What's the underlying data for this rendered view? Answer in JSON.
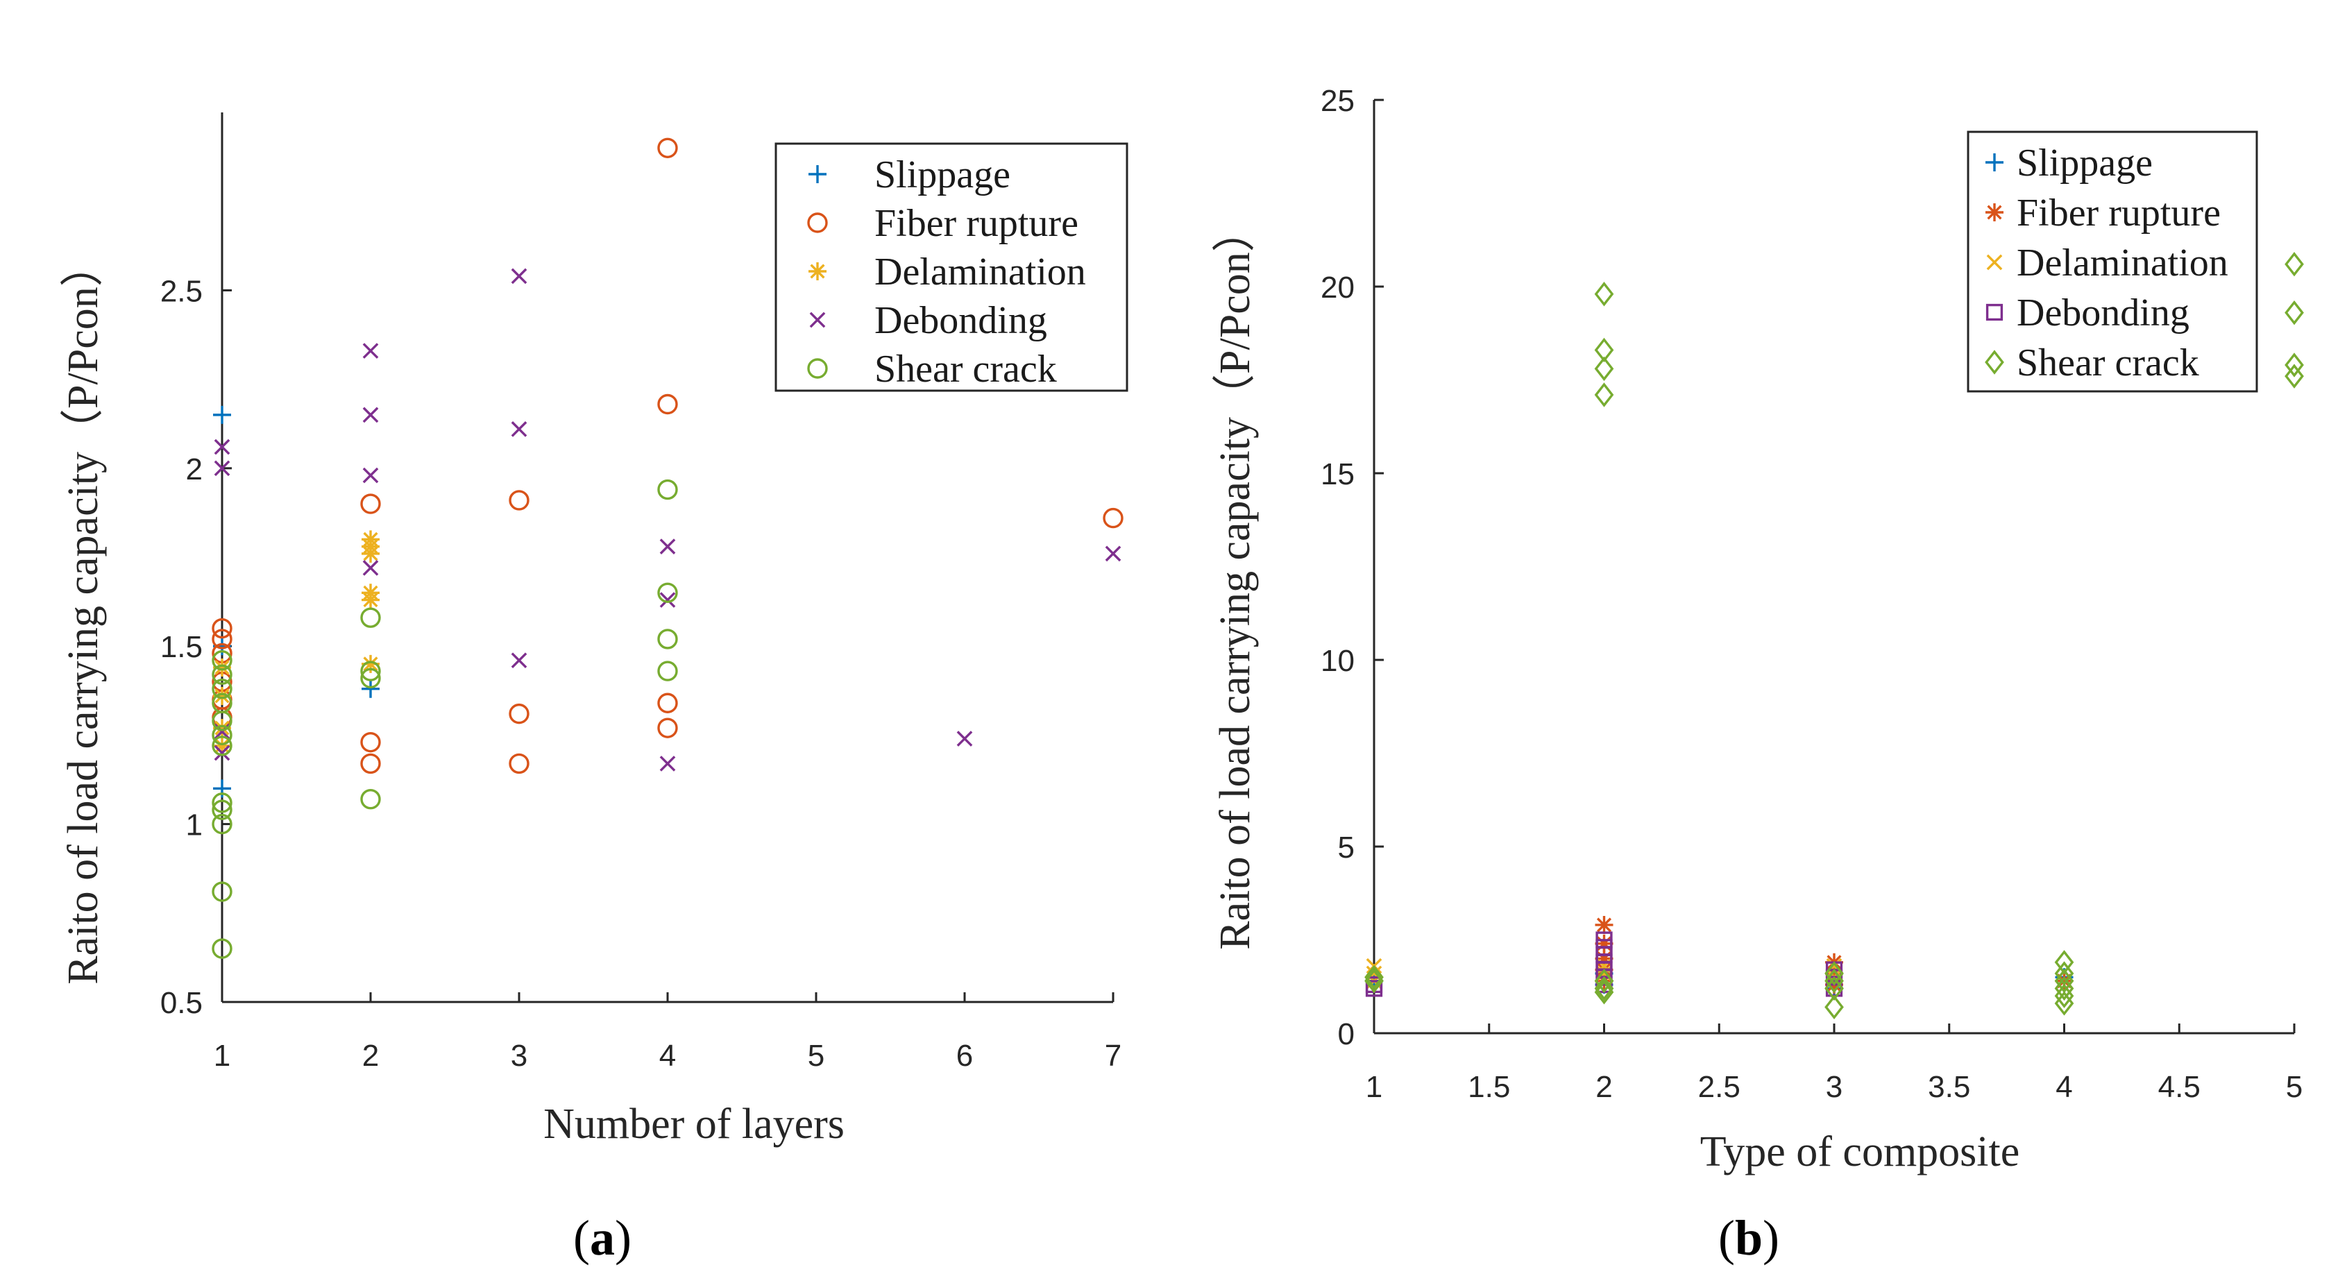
{
  "colors": {
    "Slippage": "#0072BD",
    "Fiber rupture": "#D95319",
    "Delamination": "#EDB120",
    "Debonding": "#7E2F8E",
    "Shear crack": "#77AC30"
  },
  "chart_data": [
    {
      "type": "scatter",
      "panel_label": "a",
      "xlabel": "Number of layers",
      "ylabel": "Raito of load carrying capacity（P/Pcon）",
      "xlim": [
        1,
        7
      ],
      "ylim": [
        0.5,
        3
      ],
      "xticks": [
        1,
        2,
        3,
        4,
        5,
        6,
        7
      ],
      "yticks": [
        0.5,
        1,
        1.5,
        2,
        2.5
      ],
      "ytick_labels": [
        "0.5",
        "1",
        "1.5",
        "2",
        "2.5"
      ],
      "legend_position": "top-right",
      "series": [
        {
          "name": "Slippage",
          "marker": "plus",
          "points": [
            [
              1,
              2.15
            ],
            [
              1,
              1.5
            ],
            [
              1,
              1.1
            ],
            [
              2,
              1.38
            ]
          ]
        },
        {
          "name": "Fiber rupture",
          "marker": "circle",
          "points": [
            [
              1,
              1.55
            ],
            [
              1,
              1.52
            ],
            [
              1,
              1.48
            ],
            [
              1,
              1.4
            ],
            [
              1,
              1.35
            ],
            [
              1,
              1.3
            ],
            [
              2,
              1.9
            ],
            [
              2,
              1.23
            ],
            [
              2,
              1.17
            ],
            [
              3,
              1.91
            ],
            [
              3,
              1.31
            ],
            [
              3,
              1.17
            ],
            [
              4,
              2.9
            ],
            [
              4,
              2.18
            ],
            [
              4,
              1.34
            ],
            [
              4,
              1.27
            ],
            [
              7,
              1.86
            ]
          ]
        },
        {
          "name": "Delamination",
          "marker": "asterisk",
          "points": [
            [
              1,
              1.44
            ],
            [
              1,
              1.36
            ],
            [
              1,
              1.27
            ],
            [
              1,
              1.22
            ],
            [
              2,
              1.8
            ],
            [
              2,
              1.78
            ],
            [
              2,
              1.76
            ],
            [
              2,
              1.65
            ],
            [
              2,
              1.63
            ],
            [
              2,
              1.45
            ]
          ]
        },
        {
          "name": "Debonding",
          "marker": "x",
          "points": [
            [
              1,
              2.06
            ],
            [
              1,
              2.0
            ],
            [
              1,
              1.26
            ],
            [
              1,
              1.2
            ],
            [
              2,
              2.33
            ],
            [
              2,
              2.15
            ],
            [
              2,
              1.98
            ],
            [
              2,
              1.72
            ],
            [
              3,
              2.54
            ],
            [
              3,
              2.11
            ],
            [
              3,
              1.46
            ],
            [
              4,
              1.78
            ],
            [
              4,
              1.63
            ],
            [
              4,
              1.17
            ],
            [
              6,
              1.24
            ],
            [
              7,
              1.76
            ]
          ]
        },
        {
          "name": "Shear crack",
          "marker": "circle",
          "points": [
            [
              1,
              1.46
            ],
            [
              1,
              1.42
            ],
            [
              1,
              1.38
            ],
            [
              1,
              1.34
            ],
            [
              1,
              1.29
            ],
            [
              1,
              1.25
            ],
            [
              1,
              1.22
            ],
            [
              1,
              1.06
            ],
            [
              1,
              1.04
            ],
            [
              1,
              1.0
            ],
            [
              1,
              0.81
            ],
            [
              1,
              0.65
            ],
            [
              2,
              1.58
            ],
            [
              2,
              1.43
            ],
            [
              2,
              1.41
            ],
            [
              2,
              1.07
            ],
            [
              4,
              1.94
            ],
            [
              4,
              1.65
            ],
            [
              4,
              1.52
            ],
            [
              4,
              1.43
            ]
          ]
        }
      ]
    },
    {
      "type": "scatter",
      "panel_label": "b",
      "xlabel": "Type of composite",
      "ylabel": "Raito of load carrying capacity（P/Pcon）",
      "xlim": [
        1,
        5
      ],
      "ylim": [
        0,
        25
      ],
      "xticks": [
        1,
        1.5,
        2,
        2.5,
        3,
        3.5,
        4,
        4.5,
        5
      ],
      "yticks": [
        0,
        5,
        10,
        15,
        20,
        25
      ],
      "legend_position": "top-right",
      "series": [
        {
          "name": "Slippage",
          "marker": "plus",
          "points": [
            [
              1,
              1.4
            ],
            [
              2,
              1.3
            ],
            [
              2,
              1.6
            ],
            [
              3,
              1.2
            ],
            [
              4,
              1.5
            ]
          ]
        },
        {
          "name": "Fiber rupture",
          "marker": "asterisk",
          "points": [
            [
              2,
              2.9
            ],
            [
              2,
              2.4
            ],
            [
              2,
              2.0
            ],
            [
              2,
              1.7
            ],
            [
              2,
              1.4
            ],
            [
              3,
              1.9
            ],
            [
              3,
              1.6
            ],
            [
              3,
              1.3
            ],
            [
              4,
              1.4
            ]
          ]
        },
        {
          "name": "Delamination",
          "marker": "x",
          "points": [
            [
              1,
              1.8
            ],
            [
              1,
              1.6
            ],
            [
              1,
              1.4
            ],
            [
              2,
              1.8
            ],
            [
              2,
              1.6
            ],
            [
              3,
              1.8
            ],
            [
              3,
              1.5
            ]
          ]
        },
        {
          "name": "Debonding",
          "marker": "square",
          "points": [
            [
              1,
              1.3
            ],
            [
              1,
              1.2
            ],
            [
              2,
              2.5
            ],
            [
              2,
              2.3
            ],
            [
              2,
              2.1
            ],
            [
              2,
              1.9
            ],
            [
              2,
              1.7
            ],
            [
              2,
              1.5
            ],
            [
              2,
              1.3
            ],
            [
              3,
              1.7
            ],
            [
              3,
              1.5
            ],
            [
              3,
              1.2
            ]
          ]
        },
        {
          "name": "Shear crack",
          "marker": "diamond",
          "points": [
            [
              1,
              1.5
            ],
            [
              1,
              1.4
            ],
            [
              2,
              19.8
            ],
            [
              2,
              18.3
            ],
            [
              2,
              17.8
            ],
            [
              2,
              17.1
            ],
            [
              2,
              1.4
            ],
            [
              2,
              1.2
            ],
            [
              2,
              1.1
            ],
            [
              3,
              1.6
            ],
            [
              3,
              1.4
            ],
            [
              3,
              1.2
            ],
            [
              3,
              0.7
            ],
            [
              4,
              1.9
            ],
            [
              4,
              1.6
            ],
            [
              4,
              1.4
            ],
            [
              4,
              1.2
            ],
            [
              4,
              1.0
            ],
            [
              4,
              0.8
            ],
            [
              5,
              20.6
            ],
            [
              5,
              19.3
            ],
            [
              5,
              17.9
            ],
            [
              5,
              17.6
            ]
          ]
        }
      ]
    }
  ]
}
